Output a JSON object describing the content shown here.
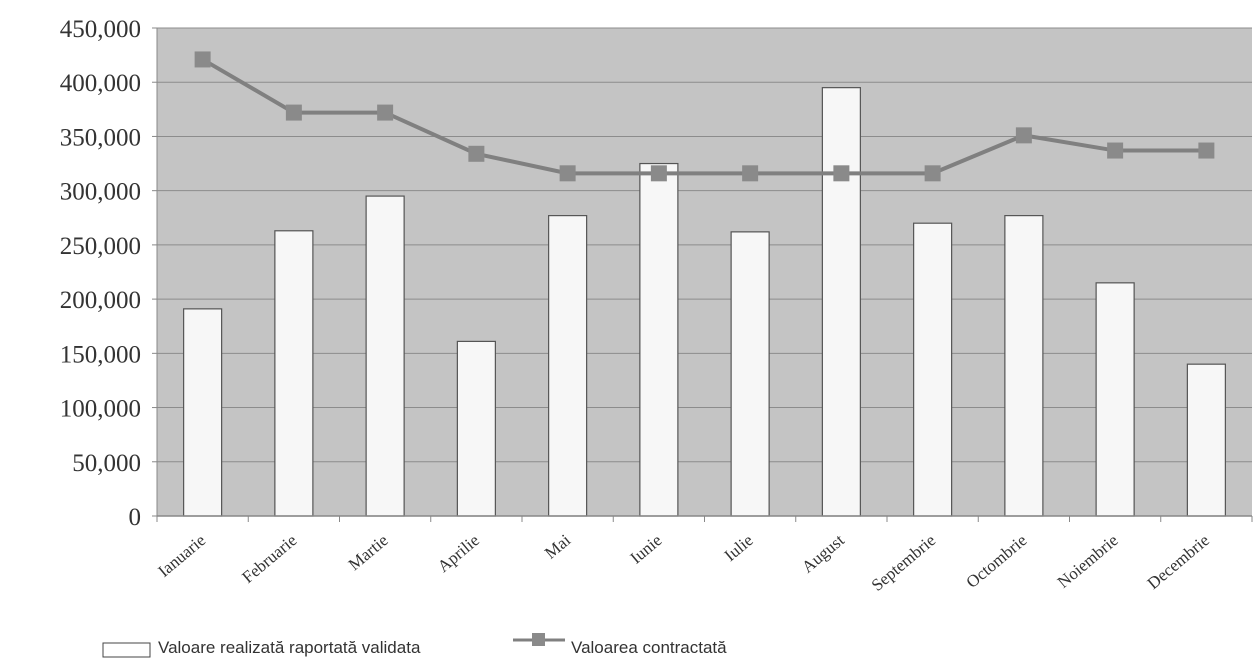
{
  "chart_data": {
    "type": "bar",
    "categories": [
      "Ianuarie",
      "Februarie",
      "Martie",
      "Aprilie",
      "Mai",
      "Iunie",
      "Iulie",
      "August",
      "Septembrie",
      "Octombrie",
      "Noiembrie",
      "Decembrie"
    ],
    "series": [
      {
        "name": "Valoare realizată raportată validata",
        "type": "bar",
        "values": [
          191000,
          263000,
          295000,
          161000,
          277000,
          325000,
          262000,
          395000,
          270000,
          277000,
          215000,
          140000
        ]
      },
      {
        "name": "Valoarea contractată",
        "type": "line",
        "values": [
          421000,
          372000,
          372000,
          334000,
          316000,
          316000,
          316000,
          316000,
          316000,
          351000,
          337000,
          337000
        ]
      }
    ],
    "y_ticks": [
      "0",
      "50,000",
      "100,000",
      "150,000",
      "200,000",
      "250,000",
      "300,000",
      "350,000",
      "400,000",
      "450,000"
    ],
    "ylim": [
      0,
      450000
    ],
    "grid": true,
    "legend_position": "bottom-left",
    "colors": {
      "plot_background": "#c4c4c4",
      "gridline": "#8c8c8c",
      "bar_fill": "#f7f7f7",
      "bar_stroke": "#555555",
      "line": "#808080",
      "marker": "#8a8a8a"
    }
  }
}
